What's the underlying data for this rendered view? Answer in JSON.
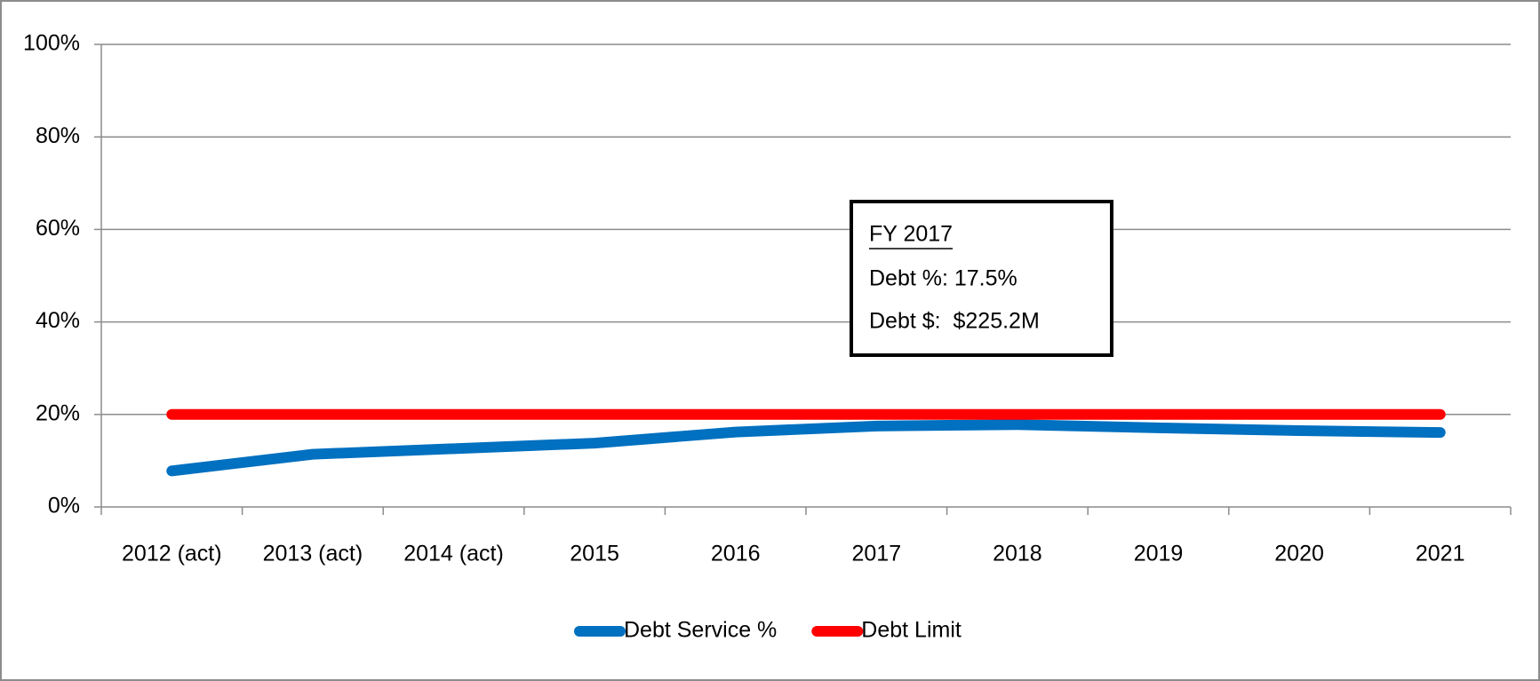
{
  "chart_data": {
    "type": "line",
    "categories": [
      "2012 (act)",
      "2013 (act)",
      "2014 (act)",
      "2015",
      "2016",
      "2017",
      "2018",
      "2019",
      "2020",
      "2021"
    ],
    "series": [
      {
        "name": "Debt Service %",
        "color": "#0070c0",
        "values": [
          7.8,
          11.4,
          12.6,
          13.8,
          16.2,
          17.5,
          17.8,
          17.1,
          16.5,
          16.1
        ]
      },
      {
        "name": "Debt Limit",
        "color": "#ff0000",
        "values": [
          20,
          20,
          20,
          20,
          20,
          20,
          20,
          20,
          20,
          20
        ]
      }
    ],
    "ylim": [
      0,
      100
    ],
    "yticks": [
      {
        "value": 0,
        "label": "0%"
      },
      {
        "value": 20,
        "label": "20%"
      },
      {
        "value": 40,
        "label": "40%"
      },
      {
        "value": 60,
        "label": "60%"
      },
      {
        "value": 80,
        "label": "80%"
      },
      {
        "value": 100,
        "label": "100%"
      }
    ],
    "grid": true,
    "legend": "bottom",
    "annotation": {
      "title": "FY 2017",
      "lines": [
        "Debt %: 17.5%",
        "Debt $:  $225.2M"
      ]
    }
  }
}
